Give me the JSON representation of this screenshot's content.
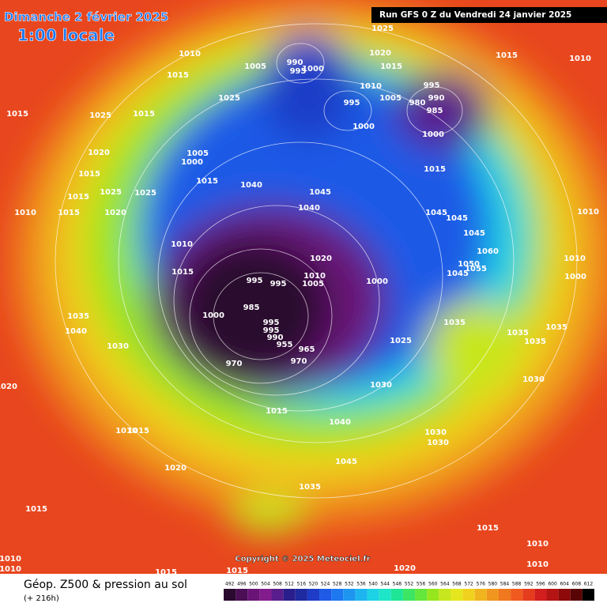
{
  "header": {
    "date": "Dimanche 2 février 2025",
    "time": "1:00 locale",
    "run": "Run GFS 0 Z du Vendredi 24 janvier 2025"
  },
  "copyright": "Copyright © 2025 Meteociel.fr",
  "footer": {
    "title": "Géop. Z500 & pression au sol",
    "lead": "(+ 216h)"
  },
  "scale": {
    "labels": [
      492,
      496,
      500,
      504,
      508,
      512,
      516,
      520,
      524,
      528,
      532,
      536,
      540,
      544,
      548,
      552,
      556,
      560,
      564,
      568,
      572,
      576,
      580,
      584,
      588,
      592,
      596,
      600,
      604,
      608,
      612
    ],
    "colors": [
      "#2a0a2e",
      "#4a0f55",
      "#6a1478",
      "#821c8c",
      "#5a1e8c",
      "#2a1e8c",
      "#1e2aa0",
      "#1e3cc8",
      "#1e5ae6",
      "#1e78f0",
      "#1e96f0",
      "#1eb4f0",
      "#1ed2e6",
      "#1ee6c8",
      "#1ee696",
      "#3ce664",
      "#64e63c",
      "#96e61e",
      "#c8e61e",
      "#e6e61e",
      "#f0d21e",
      "#f0b41e",
      "#f0961e",
      "#f0781e",
      "#f05a1e",
      "#e63c1e",
      "#d21e1e",
      "#b41414",
      "#8c0a0a",
      "#5a0505",
      "#000000"
    ]
  },
  "isobars": [
    1025,
    1010,
    1015,
    1005,
    990,
    995,
    1000,
    1020,
    1015,
    1015,
    1010,
    1015,
    1025,
    1015,
    1025,
    1010,
    1005,
    995,
    1000,
    980,
    995,
    990,
    985,
    1000,
    1015,
    1005,
    1000,
    1015,
    1020,
    1015,
    1015,
    1025,
    1025,
    1010,
    1015,
    1020,
    1040,
    1045,
    1040,
    1045,
    1045,
    1045,
    1060,
    1010,
    1015,
    1020,
    1010,
    1005,
    995,
    995,
    1000,
    985,
    1000,
    995,
    995,
    990,
    955,
    965,
    970,
    970,
    1025,
    1035,
    1035,
    1035,
    1035,
    1030,
    1035,
    1040,
    1030,
    1030,
    1015,
    1040,
    1030,
    1030,
    1045,
    1035,
    1020,
    1010,
    1015,
    1020,
    1015,
    1015,
    1010,
    1010,
    1015,
    1015,
    1020,
    1010,
    1010,
    1010,
    1000,
    1010,
    1055,
    1050,
    1045
  ]
}
